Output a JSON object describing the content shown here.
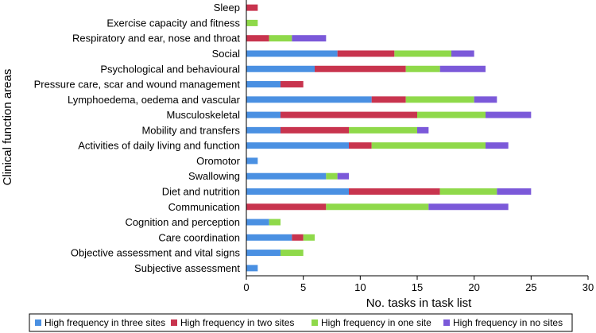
{
  "chart_data": {
    "type": "bar",
    "orientation": "horizontal",
    "stacked": true,
    "categories": [
      "Sleep",
      "Exercise capacity and fitness",
      "Respiratory and ear, nose and throat",
      "Social",
      "Psychological and behavioural",
      "Pressure care, scar and wound management",
      "Lymphoedema, oedema and vascular",
      "Musculoskeletal",
      "Mobility and transfers",
      "Activities of daily living and function",
      "Oromotor",
      "Swallowing",
      "Diet and nutrition",
      "Communication",
      "Cognition and perception",
      "Care coordination",
      "Objective assessment and vital signs",
      "Subjective assessment"
    ],
    "series": [
      {
        "name": "High frequency in three sites",
        "color": "#4a90e2",
        "values": [
          0,
          0,
          0,
          8,
          6,
          3,
          11,
          3,
          3,
          9,
          1,
          7,
          9,
          0,
          2,
          4,
          3,
          1
        ]
      },
      {
        "name": "High frequency in two sites",
        "color": "#c8344e",
        "values": [
          1,
          0,
          2,
          5,
          8,
          2,
          3,
          12,
          6,
          2,
          0,
          0,
          8,
          7,
          0,
          1,
          0,
          0
        ]
      },
      {
        "name": "High frequency in one site",
        "color": "#8fd94a",
        "values": [
          0,
          1,
          2,
          5,
          3,
          0,
          6,
          6,
          6,
          10,
          0,
          1,
          5,
          9,
          1,
          1,
          2,
          0
        ]
      },
      {
        "name": "High frequency in no sites",
        "color": "#7b59d9",
        "values": [
          0,
          0,
          3,
          2,
          4,
          0,
          2,
          4,
          1,
          2,
          0,
          1,
          3,
          7,
          0,
          0,
          0,
          0
        ]
      }
    ],
    "xlabel": "No. tasks in task list",
    "ylabel": "Clinical function areas",
    "xlim": [
      0,
      30
    ],
    "xticks": [
      0,
      5,
      10,
      15,
      20,
      25,
      30
    ],
    "grid": false,
    "legend_position": "bottom"
  }
}
